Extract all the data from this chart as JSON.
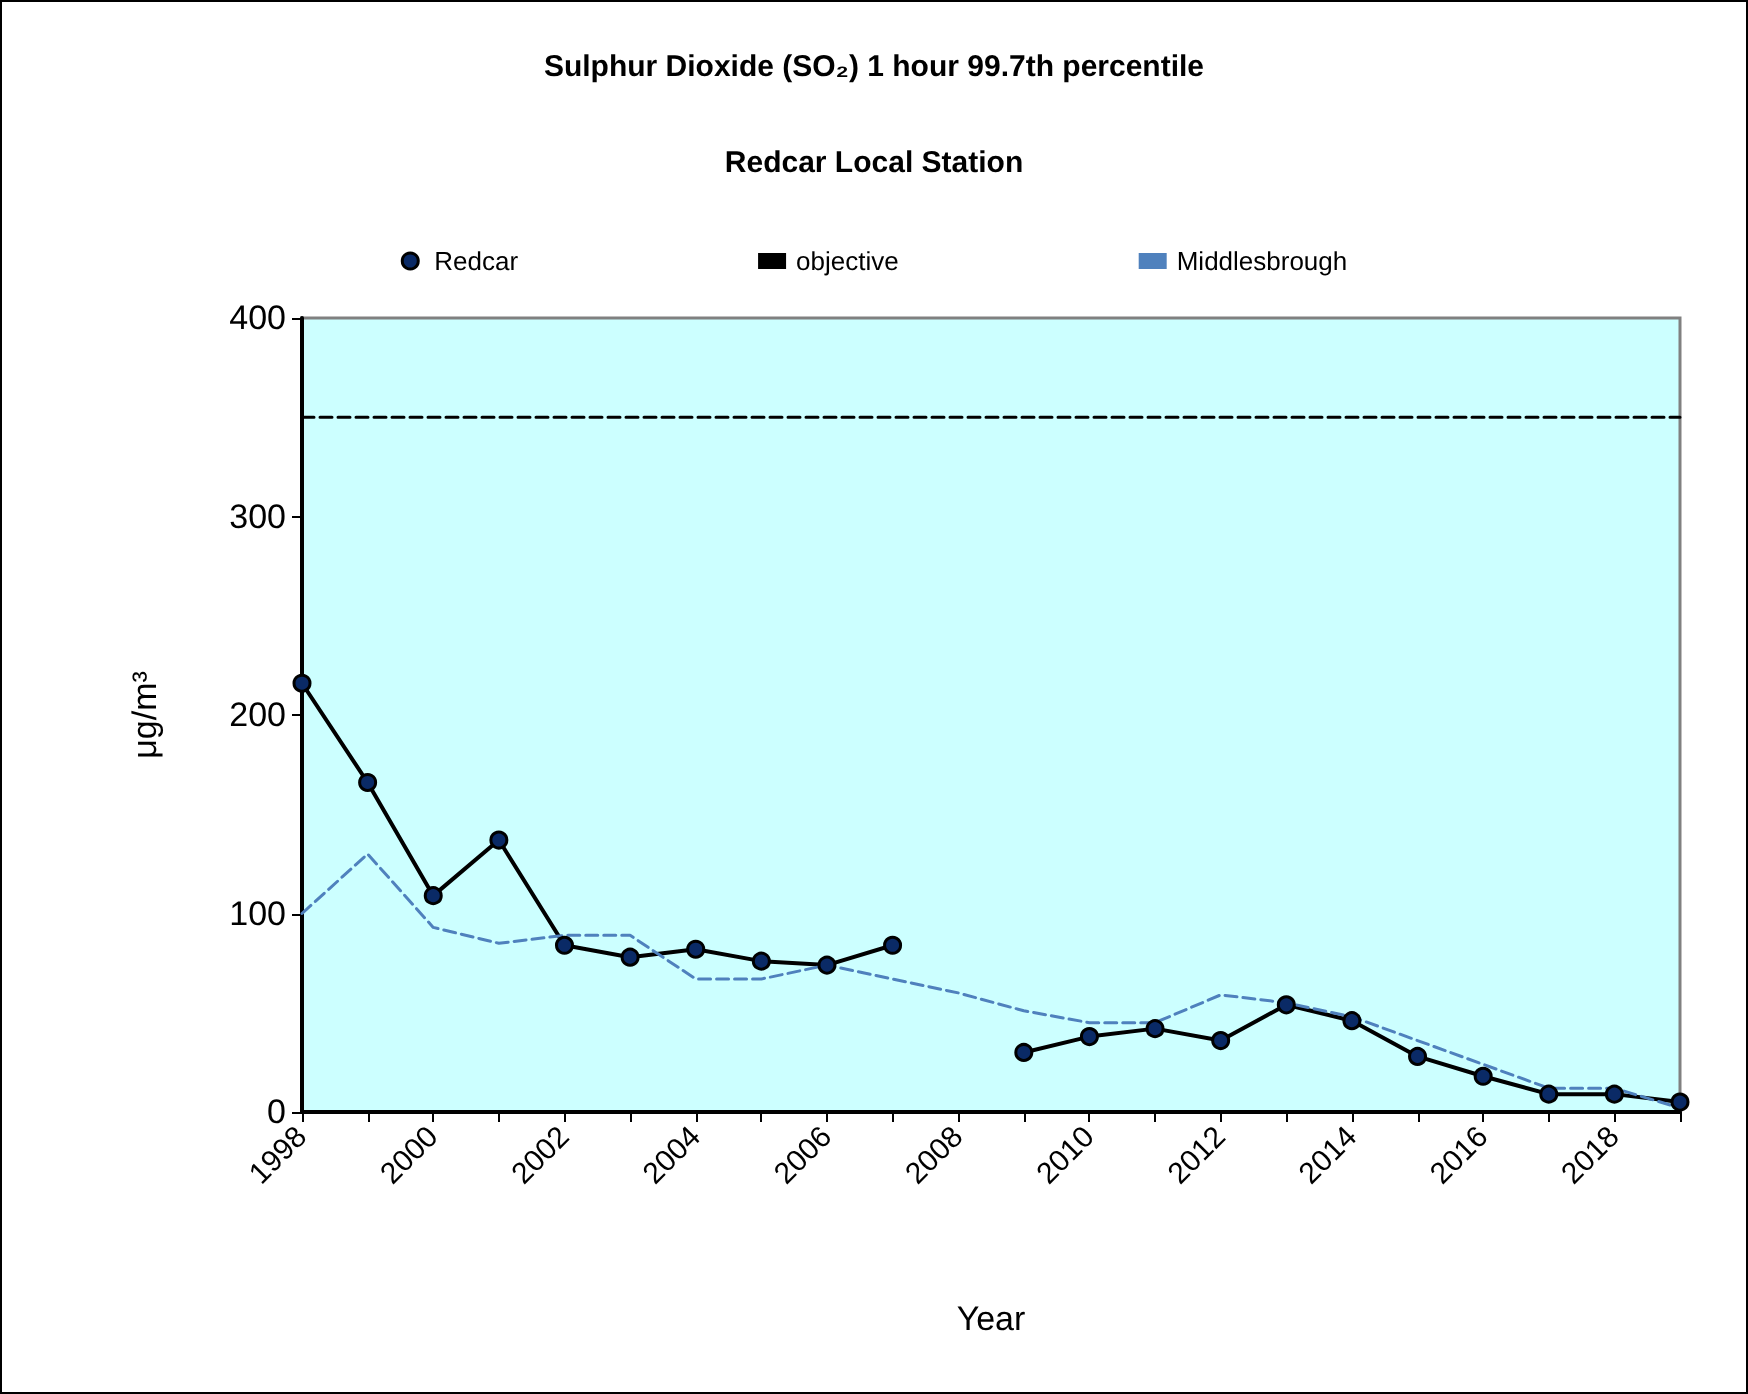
{
  "chart_data": {
    "type": "line",
    "title": "Sulphur Dioxide (SO₂) 1 hour 99.7th percentile",
    "subtitle": "Redcar Local Station",
    "xlabel": "Year",
    "ylabel": "μg/m³",
    "categories": [
      "1998",
      null,
      "2000",
      null,
      "2002",
      null,
      "2004",
      null,
      "2006",
      null,
      "2008",
      null,
      "2010",
      null,
      "2012",
      null,
      "2014",
      null,
      "2016",
      null,
      "2018",
      null
    ],
    "series": [
      {
        "name": "Redcar",
        "color": "#000000",
        "marker": "circle",
        "line_style": "solid",
        "values": [
          216,
          166,
          109,
          137,
          84,
          78,
          82,
          76,
          74,
          84,
          null,
          30,
          38,
          42,
          36,
          54,
          46,
          28,
          18,
          9,
          9,
          5
        ]
      },
      {
        "name": "objective",
        "color": "#000000",
        "marker": "none",
        "line_style": "dashed",
        "values": [
          350,
          350,
          350,
          350,
          350,
          350,
          350,
          350,
          350,
          350,
          350,
          350,
          350,
          350,
          350,
          350,
          350,
          350,
          350,
          350,
          350,
          350
        ]
      },
      {
        "name": "Middlesbrough",
        "color": "#4f81bd",
        "marker": "none",
        "line_style": "dashed",
        "values": [
          100,
          130,
          93,
          85,
          89,
          89,
          67,
          67,
          74,
          67,
          60,
          51,
          45,
          45,
          59,
          55,
          48,
          36,
          24,
          12,
          12,
          2
        ]
      }
    ],
    "ylim": [
      0,
      400
    ],
    "yticks": [
      0,
      100,
      200,
      300,
      400
    ],
    "grid": false,
    "legend": "top"
  }
}
